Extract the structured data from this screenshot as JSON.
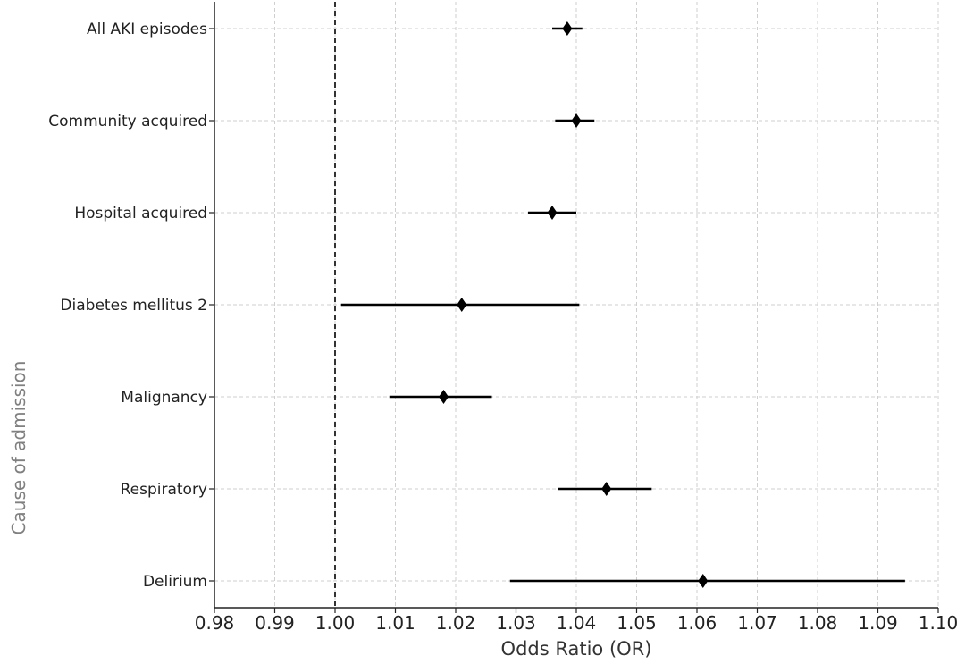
{
  "chart_data": {
    "type": "forest",
    "xlabel": "Odds Ratio (OR)",
    "ylabel": "Cause of admission",
    "xlim": [
      0.98,
      1.1
    ],
    "xticks": [
      0.98,
      0.99,
      1.0,
      1.01,
      1.02,
      1.03,
      1.04,
      1.05,
      1.06,
      1.07,
      1.08,
      1.09,
      1.1
    ],
    "xtick_labels": [
      "0.98",
      "0.99",
      "1.00",
      "1.01",
      "1.02",
      "1.03",
      "1.04",
      "1.05",
      "1.06",
      "1.07",
      "1.08",
      "1.09",
      "1.10"
    ],
    "reference_line": 1.0,
    "grid": true,
    "rows": [
      {
        "label": "All AKI episodes",
        "or": 1.0385,
        "lower": 1.036,
        "upper": 1.041
      },
      {
        "label": "Community acquired",
        "or": 1.04,
        "lower": 1.0365,
        "upper": 1.043
      },
      {
        "label": "Hospital acquired",
        "or": 1.036,
        "lower": 1.032,
        "upper": 1.04
      },
      {
        "label": "Diabetes mellitus 2",
        "or": 1.021,
        "lower": 1.001,
        "upper": 1.0405
      },
      {
        "label": "Malignancy",
        "or": 1.018,
        "lower": 1.009,
        "upper": 1.026
      },
      {
        "label": "Respiratory",
        "or": 1.045,
        "lower": 1.037,
        "upper": 1.0525
      },
      {
        "label": "Delirium",
        "or": 1.061,
        "lower": 1.029,
        "upper": 1.0945
      }
    ]
  }
}
